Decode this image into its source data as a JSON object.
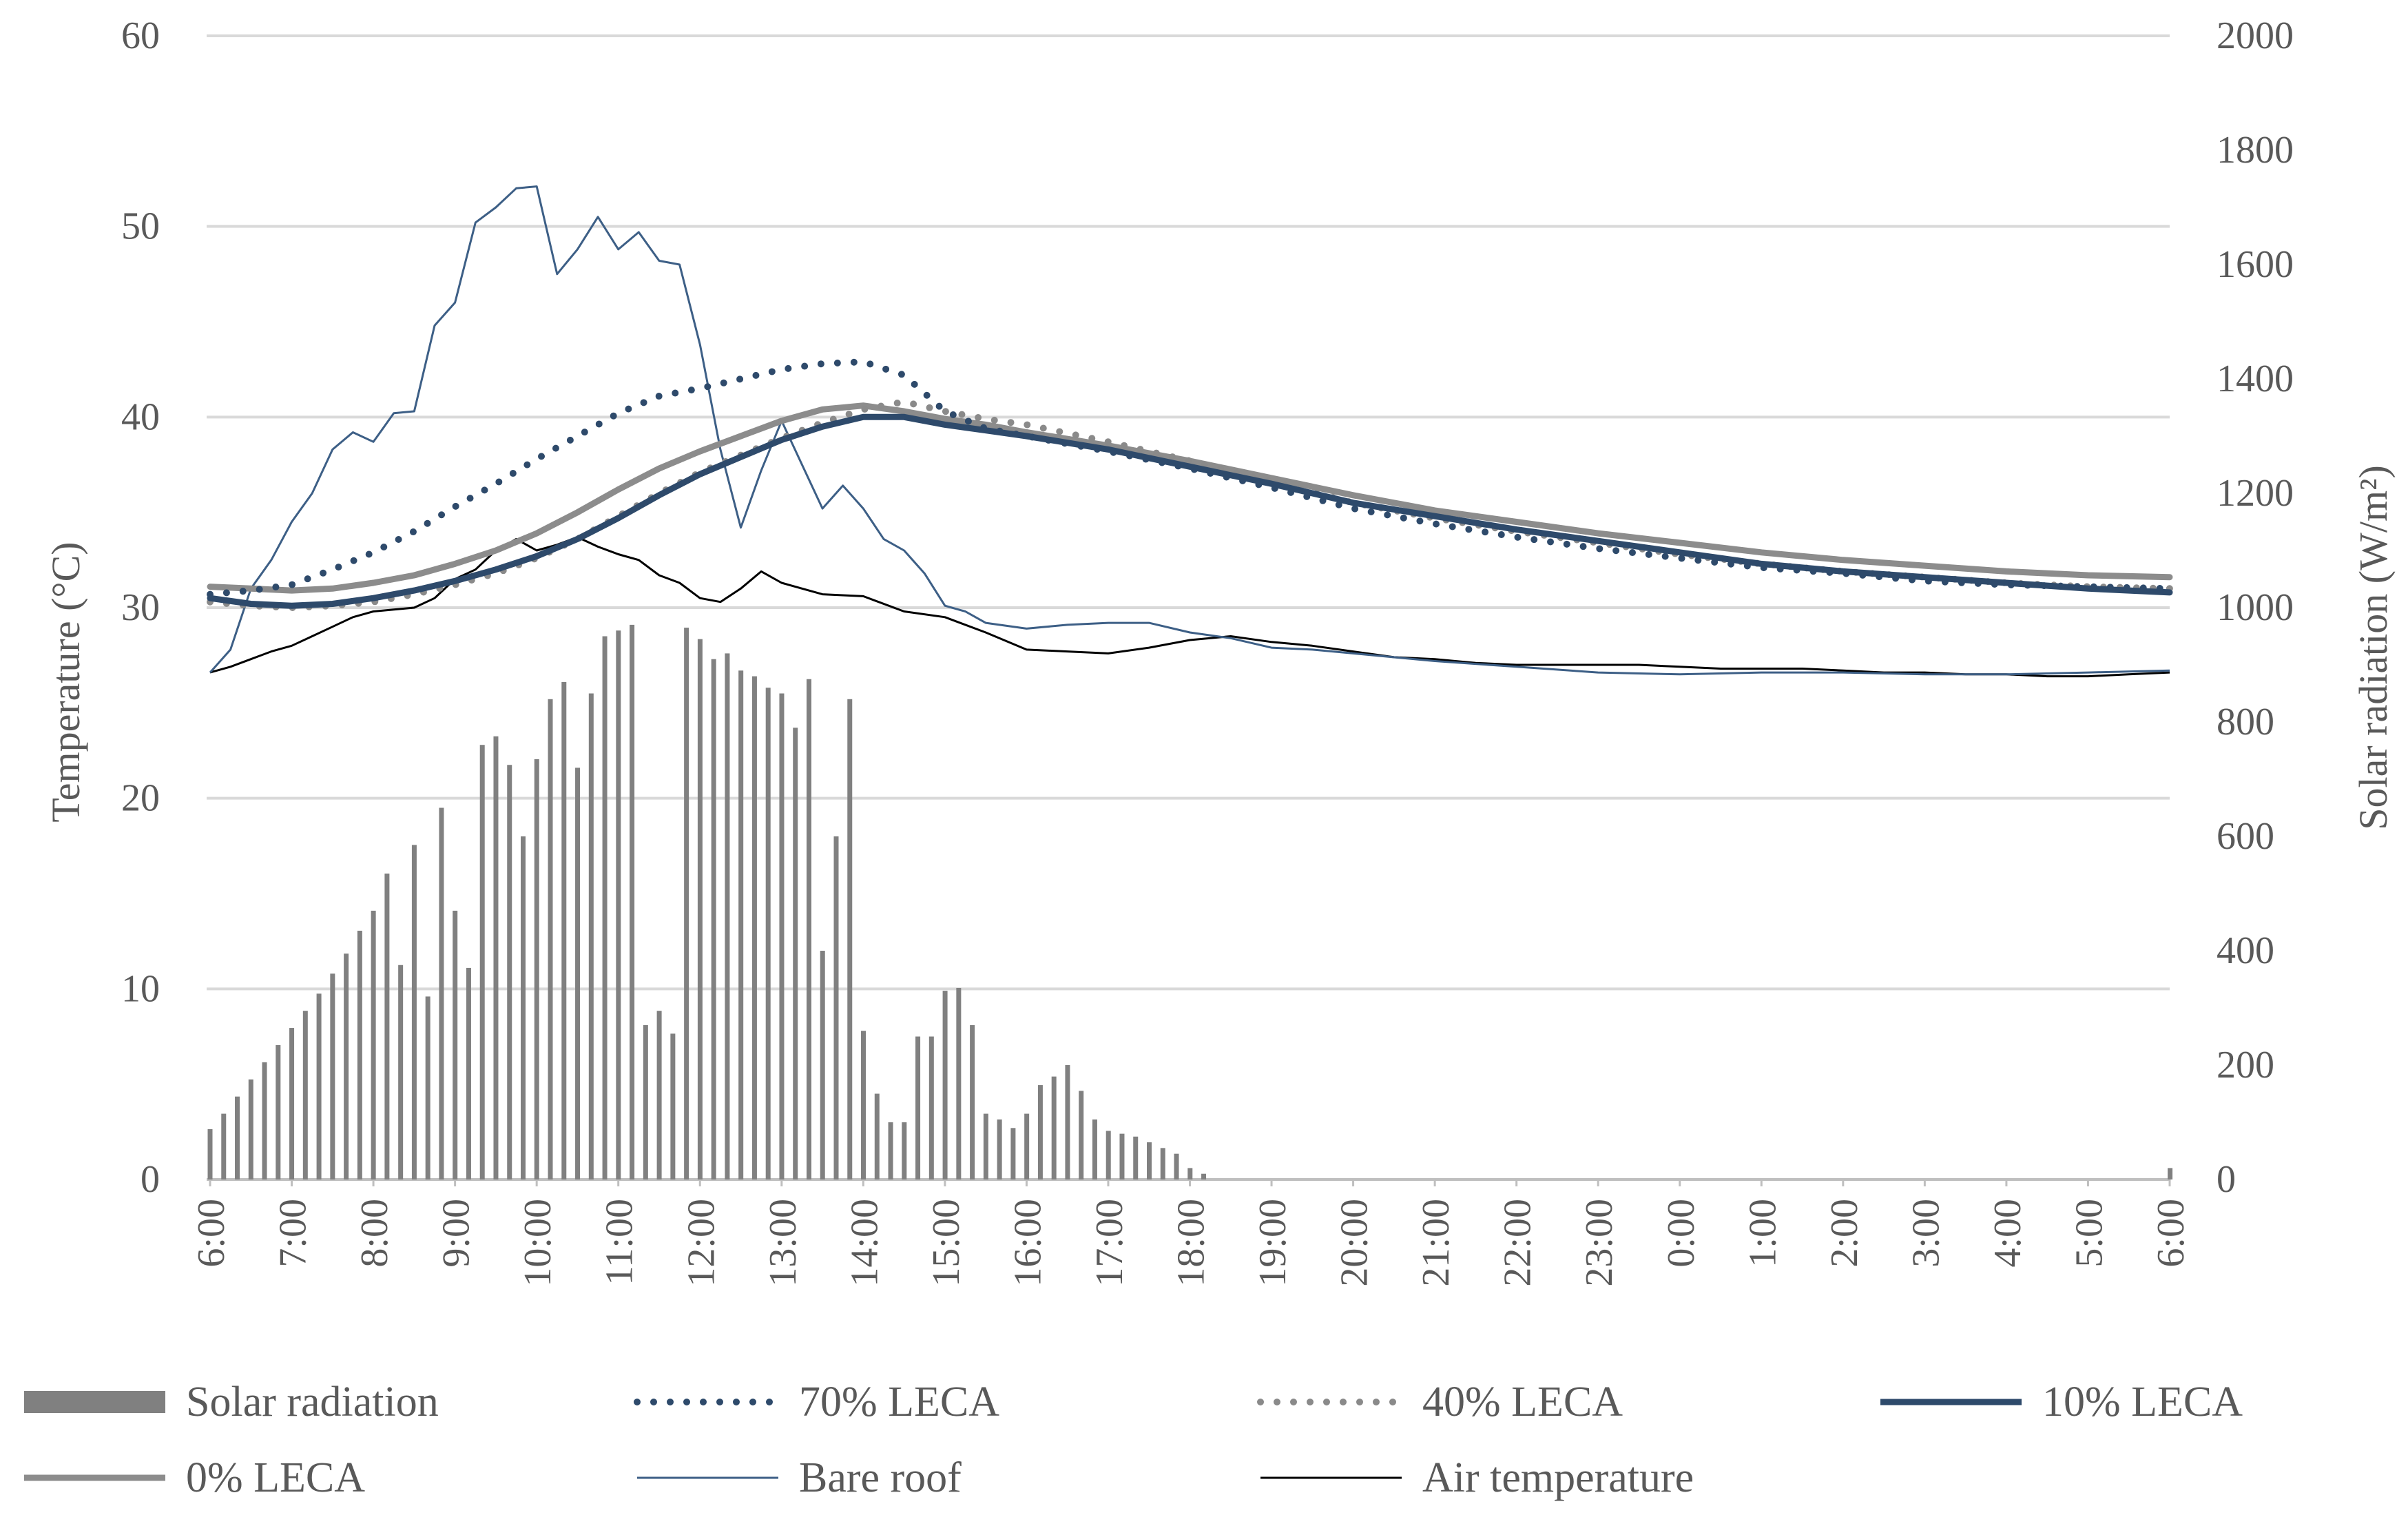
{
  "chart_data": {
    "type": "bar+line",
    "title": "",
    "ylabel": "Temperature (°C)",
    "ylabel2": "Solar radiation  (W/m²)",
    "xlabel": "",
    "ylim": [
      0,
      60
    ],
    "ylim2": [
      0,
      2000
    ],
    "yticks": [
      "0",
      "10",
      "20",
      "30",
      "40",
      "50",
      "60"
    ],
    "y2ticks": [
      "0",
      "200",
      "400",
      "600",
      "800",
      "1000",
      "1200",
      "1400",
      "1600",
      "1800",
      "2000"
    ],
    "xlim": [
      0,
      24
    ],
    "xticks": [
      "6:00",
      "7:00",
      "8:00",
      "9:00",
      "10:00",
      "11:00",
      "12:00",
      "13:00",
      "14:00",
      "15:00",
      "16:00",
      "17:00",
      "18:00",
      "19:00",
      "20:00",
      "21:00",
      "22:00",
      "23:00",
      "0:00",
      "1:00",
      "2:00",
      "3:00",
      "4:00",
      "5:00",
      "6:00"
    ],
    "grid": true,
    "legend_position": "bottom",
    "solar_radiation": {
      "name": "Solar radiation",
      "color": "#808080",
      "step_hours": 0.1667,
      "values": [
        88,
        115,
        145,
        175,
        205,
        235,
        265,
        295,
        325,
        360,
        395,
        435,
        470,
        535,
        375,
        585,
        320,
        650,
        470,
        370,
        760,
        775,
        725,
        600,
        735,
        840,
        870,
        720,
        850,
        950,
        960,
        970,
        270,
        295,
        255,
        965,
        945,
        910,
        920,
        890,
        880,
        860,
        850,
        790,
        875,
        400,
        600,
        840,
        260,
        150,
        100,
        100,
        250,
        250,
        330,
        335,
        270,
        115,
        105,
        90,
        115,
        165,
        180,
        200,
        155,
        105,
        85,
        80,
        75,
        65,
        55,
        45,
        20,
        10,
        0,
        0,
        0,
        0,
        0,
        0,
        0,
        0,
        0,
        0,
        0,
        0,
        0,
        0,
        0,
        0,
        0,
        0,
        0,
        0,
        0,
        0,
        0,
        0,
        0,
        0,
        0,
        0,
        0,
        0,
        0,
        0,
        0,
        0,
        0,
        0,
        0,
        0,
        0,
        0,
        0,
        0,
        0,
        0,
        0,
        0,
        0,
        0,
        0,
        0,
        0,
        0,
        0,
        0,
        0,
        0,
        0,
        0,
        0,
        0,
        0,
        0,
        0,
        0,
        0,
        0,
        0,
        0,
        0,
        0,
        20
      ]
    },
    "series": [
      {
        "name": "70% LECA",
        "color": "#2e4a6b",
        "style": "dotted",
        "x": [
          0,
          0.5,
          1,
          1.5,
          2,
          2.5,
          3,
          3.5,
          4,
          4.5,
          5,
          5.5,
          6,
          6.5,
          7,
          7.5,
          8,
          8.5,
          9,
          9.5,
          10,
          11,
          12,
          13,
          14,
          15,
          16,
          17,
          18,
          19,
          20,
          21,
          22,
          23,
          24
        ],
        "values": [
          30.7,
          30.9,
          31.2,
          32.0,
          32.9,
          34.0,
          35.3,
          36.5,
          37.8,
          39.0,
          40.2,
          41.1,
          41.5,
          42.0,
          42.5,
          42.8,
          42.9,
          42.2,
          40.3,
          39.4,
          39.0,
          38.2,
          37.3,
          36.3,
          35.2,
          34.4,
          33.7,
          33.1,
          32.6,
          32.1,
          31.8,
          31.4,
          31.2,
          31.1,
          31.0
        ]
      },
      {
        "name": "40% LECA",
        "color": "#8a8a8a",
        "style": "dotted",
        "x": [
          0,
          0.5,
          1,
          1.5,
          2,
          2.5,
          3,
          3.5,
          4,
          4.5,
          5,
          5.5,
          6,
          6.5,
          7,
          7.5,
          8,
          8.5,
          9,
          9.5,
          10,
          11,
          12,
          13,
          14,
          15,
          16,
          17,
          18,
          19,
          20,
          21,
          22,
          23,
          24
        ],
        "values": [
          30.3,
          30.1,
          30.0,
          30.1,
          30.3,
          30.7,
          31.2,
          31.8,
          32.6,
          33.6,
          34.8,
          36.0,
          37.1,
          38.0,
          38.9,
          39.7,
          40.4,
          40.8,
          40.3,
          39.9,
          39.6,
          38.7,
          37.7,
          36.6,
          35.5,
          34.7,
          34.0,
          33.4,
          32.8,
          32.3,
          31.9,
          31.6,
          31.3,
          31.1,
          31.0
        ]
      },
      {
        "name": "10% LECA",
        "color": "#2e4a6b",
        "style": "solid-thick",
        "x": [
          0,
          0.5,
          1,
          1.5,
          2,
          2.5,
          3,
          3.5,
          4,
          4.5,
          5,
          5.5,
          6,
          6.5,
          7,
          7.5,
          8,
          8.5,
          9,
          9.5,
          10,
          11,
          12,
          13,
          14,
          15,
          16,
          17,
          18,
          19,
          20,
          21,
          22,
          23,
          24
        ],
        "values": [
          30.5,
          30.2,
          30.1,
          30.2,
          30.5,
          30.9,
          31.4,
          32.0,
          32.7,
          33.6,
          34.7,
          35.9,
          37.0,
          37.9,
          38.8,
          39.5,
          40.0,
          40.0,
          39.6,
          39.3,
          39.0,
          38.3,
          37.4,
          36.5,
          35.5,
          34.8,
          34.1,
          33.5,
          32.9,
          32.3,
          31.9,
          31.6,
          31.3,
          31.0,
          30.8
        ]
      },
      {
        "name": "0% LECA",
        "color": "#8c8c8c",
        "style": "solid-thick",
        "x": [
          0,
          0.5,
          1,
          1.5,
          2,
          2.5,
          3,
          3.5,
          4,
          4.5,
          5,
          5.5,
          6,
          6.5,
          7,
          7.5,
          8,
          8.5,
          9,
          9.5,
          10,
          11,
          12,
          13,
          14,
          15,
          16,
          17,
          18,
          19,
          20,
          21,
          22,
          23,
          24
        ],
        "values": [
          31.1,
          31.0,
          30.9,
          31.0,
          31.3,
          31.7,
          32.3,
          33.0,
          33.9,
          35.0,
          36.2,
          37.3,
          38.2,
          39.0,
          39.8,
          40.4,
          40.6,
          40.3,
          39.9,
          39.6,
          39.2,
          38.5,
          37.7,
          36.8,
          35.9,
          35.1,
          34.5,
          33.9,
          33.4,
          32.9,
          32.5,
          32.2,
          31.9,
          31.7,
          31.6
        ]
      },
      {
        "name": "Bare roof",
        "color": "#3d5f86",
        "style": "solid-thin",
        "x": [
          0,
          0.25,
          0.5,
          0.75,
          1,
          1.25,
          1.5,
          1.75,
          2,
          2.25,
          2.5,
          2.75,
          3,
          3.25,
          3.5,
          3.75,
          4,
          4.25,
          4.5,
          4.75,
          5,
          5.25,
          5.5,
          5.75,
          6,
          6.25,
          6.5,
          6.75,
          7,
          7.25,
          7.5,
          7.75,
          8,
          8.25,
          8.5,
          8.75,
          9,
          9.25,
          9.5,
          10,
          10.5,
          11,
          11.5,
          12,
          12.5,
          13,
          13.5,
          14,
          15,
          16,
          17,
          18,
          19,
          20,
          21,
          22,
          23,
          24
        ],
        "values": [
          26.6,
          27.8,
          31.0,
          32.5,
          34.5,
          36.0,
          38.3,
          39.2,
          38.7,
          40.2,
          40.3,
          44.8,
          46.0,
          50.2,
          51.0,
          52.0,
          52.1,
          47.5,
          48.8,
          50.5,
          48.8,
          49.7,
          48.2,
          48.0,
          43.8,
          38.3,
          34.2,
          37.2,
          39.8,
          37.5,
          35.2,
          36.4,
          35.2,
          33.6,
          33.0,
          31.8,
          30.1,
          29.8,
          29.2,
          28.9,
          29.1,
          29.2,
          29.2,
          28.7,
          28.4,
          27.9,
          27.8,
          27.6,
          27.2,
          26.9,
          26.6,
          26.5,
          26.6,
          26.6,
          26.5,
          26.5,
          26.6,
          26.7
        ]
      },
      {
        "name": "Air temperature",
        "color": "#000000",
        "style": "solid-thin",
        "x": [
          0,
          0.25,
          0.5,
          0.75,
          1,
          1.25,
          1.5,
          1.75,
          2,
          2.25,
          2.5,
          2.75,
          3,
          3.25,
          3.5,
          3.75,
          4,
          4.25,
          4.5,
          4.75,
          5,
          5.25,
          5.5,
          5.75,
          6,
          6.25,
          6.5,
          6.75,
          7,
          7.5,
          8,
          8.5,
          9,
          9.5,
          10,
          10.5,
          11,
          11.5,
          12,
          12.5,
          13,
          13.5,
          14,
          14.5,
          15,
          15.5,
          16,
          16.5,
          17,
          17.5,
          18,
          18.5,
          19,
          19.5,
          20,
          20.5,
          21,
          21.5,
          22,
          22.5,
          23,
          23.5,
          24
        ],
        "values": [
          26.6,
          26.9,
          27.3,
          27.7,
          28.0,
          28.5,
          29.0,
          29.5,
          29.8,
          29.9,
          30.0,
          30.5,
          31.5,
          32.0,
          33.0,
          33.6,
          33.0,
          33.3,
          33.7,
          33.2,
          32.8,
          32.5,
          31.7,
          31.3,
          30.5,
          30.3,
          31.0,
          31.9,
          31.3,
          30.7,
          30.6,
          29.8,
          29.5,
          28.7,
          27.8,
          27.7,
          27.6,
          27.9,
          28.3,
          28.5,
          28.2,
          28.0,
          27.7,
          27.4,
          27.3,
          27.1,
          27.0,
          27.0,
          27.0,
          27.0,
          26.9,
          26.8,
          26.8,
          26.8,
          26.7,
          26.6,
          26.6,
          26.5,
          26.5,
          26.4,
          26.4,
          26.5,
          26.6
        ]
      }
    ],
    "legend": [
      {
        "label": "Solar radiation",
        "key": "solar_radiation"
      },
      {
        "label": "70% LECA",
        "key": "70"
      },
      {
        "label": "40% LECA",
        "key": "40"
      },
      {
        "label": "10% LECA",
        "key": "10"
      },
      {
        "label": "0% LECA",
        "key": "0"
      },
      {
        "label": "Bare roof",
        "key": "bare"
      },
      {
        "label": "Air temperature",
        "key": "air"
      }
    ]
  }
}
